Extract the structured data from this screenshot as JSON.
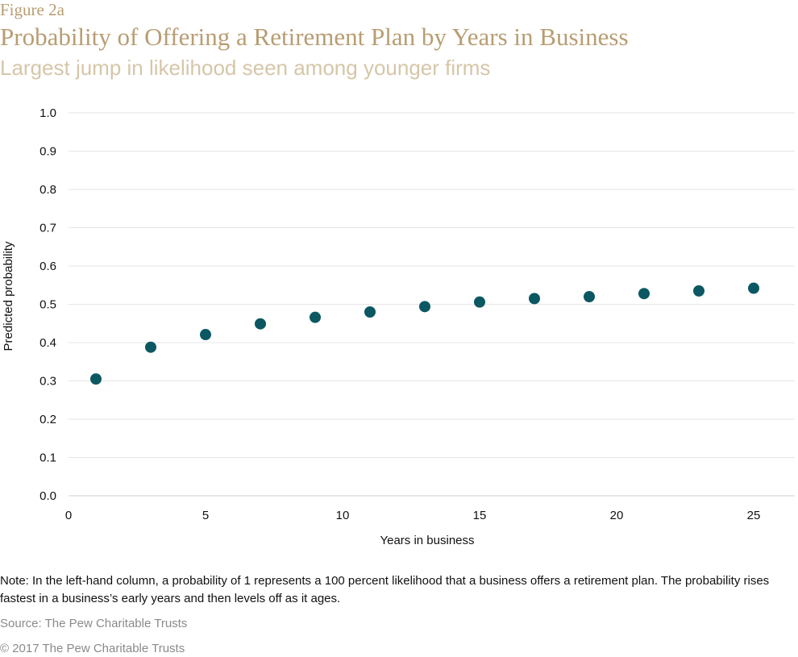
{
  "header": {
    "figure_label": "Figure 2a",
    "title": "Probability of Offering a Retirement Plan by Years in Business",
    "subtitle": "Largest jump in likelihood seen among younger firms"
  },
  "colors": {
    "title": "#b89d72",
    "subtitle": "#d6c6a8",
    "marker": "#0b5863",
    "grid": "#e6e6e6"
  },
  "chart_data": {
    "type": "scatter",
    "xlabel": "Years in business",
    "ylabel": "Predicted probability",
    "xlim": [
      0,
      26.5
    ],
    "ylim": [
      0,
      1.0
    ],
    "x_ticks": [
      0,
      5,
      10,
      15,
      20,
      25
    ],
    "y_ticks": [
      0.0,
      0.1,
      0.2,
      0.3,
      0.4,
      0.5,
      0.6,
      0.7,
      0.8,
      0.9,
      1.0
    ],
    "grid": "horizontal",
    "series": [
      {
        "x": [
          1,
          3,
          5,
          7,
          9,
          11,
          13,
          15,
          17,
          19,
          21,
          23,
          25
        ],
        "y": [
          0.305,
          0.388,
          0.421,
          0.449,
          0.466,
          0.48,
          0.494,
          0.506,
          0.515,
          0.52,
          0.528,
          0.535,
          0.542
        ]
      }
    ]
  },
  "footer": {
    "note": "Note: In the left-hand column, a probability of 1 represents a 100 percent likelihood that a business offers a retirement plan. The probability rises fastest in a business’s early years and then levels off as it ages.",
    "source": "Source: The Pew Charitable Trusts",
    "copyright": "© 2017 The Pew Charitable Trusts"
  }
}
